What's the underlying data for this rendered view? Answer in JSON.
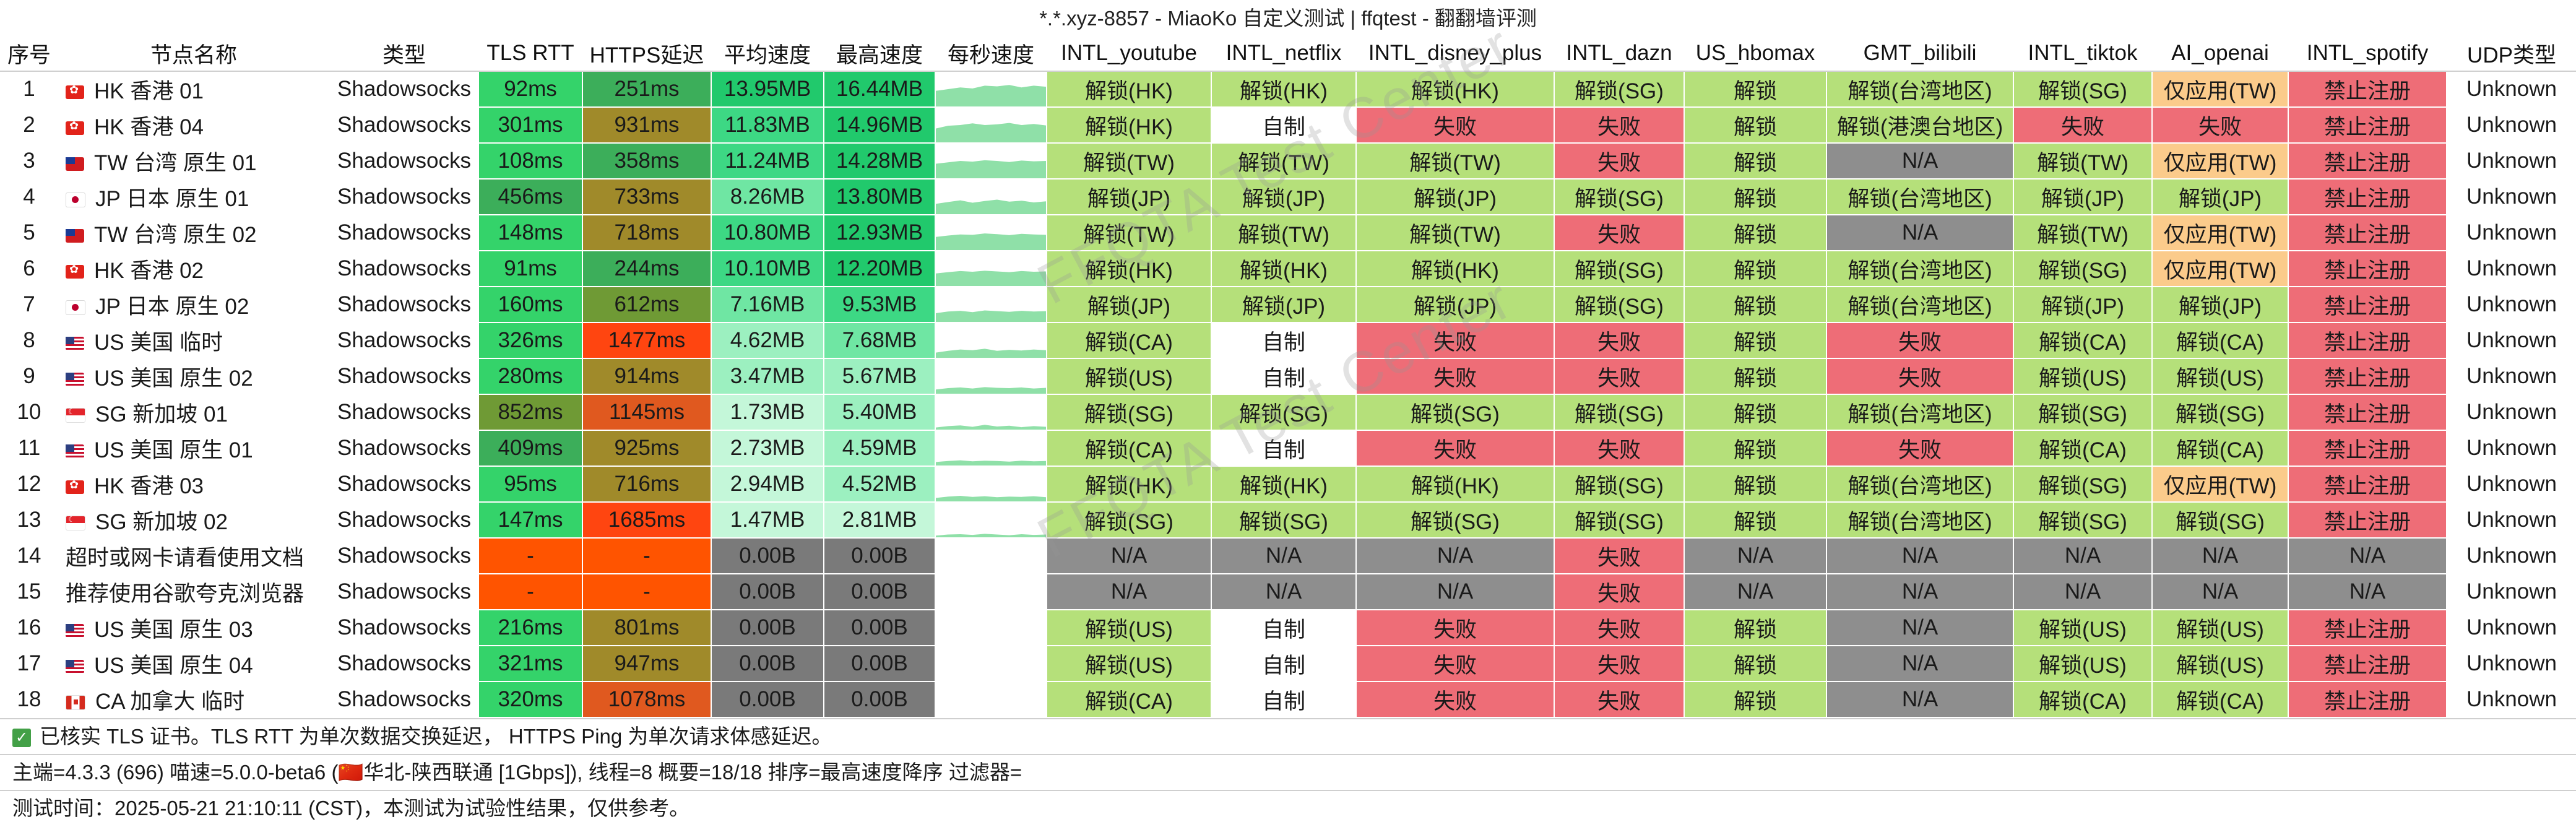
{
  "window": {
    "title": "*.*.xyz-8857 - MiaoKo 自定义测试 | ffqtest - 翻翻墙评测"
  },
  "columns": [
    "序号",
    "节点名称",
    "类型",
    "TLS RTT",
    "HTTPS延迟",
    "平均速度",
    "最高速度",
    "每秒速度",
    "INTL_youtube",
    "INTL_netflix",
    "INTL_disney_plus",
    "INTL_dazn",
    "US_hbomax",
    "GMT_bilibili",
    "INTL_tiktok",
    "AI_openai",
    "INTL_spotify",
    "UDP类型"
  ],
  "rows": [
    {
      "idx": "1",
      "flag": "HK",
      "name": "HK 香港 01",
      "type": "Shadowsocks",
      "tls": "92ms",
      "https": "251ms",
      "avg": "13.95MB",
      "max": "16.44MB",
      "spark": [
        0.45,
        0.5,
        0.55,
        0.52,
        0.6,
        0.58,
        0.62,
        0.55,
        0.6,
        0.57
      ],
      "tests": [
        "解锁(HK)",
        "解锁(HK)",
        "解锁(HK)",
        "解锁(SG)",
        "解锁",
        "解锁(台湾地区)",
        "解锁(SG)",
        "仅应用(TW)",
        "禁止注册"
      ],
      "udp": "Unknown"
    },
    {
      "idx": "2",
      "flag": "HK",
      "name": "HK 香港 04",
      "type": "Shadowsocks",
      "tls": "301ms",
      "https": "931ms",
      "avg": "11.83MB",
      "max": "14.96MB",
      "spark": [
        0.4,
        0.48,
        0.5,
        0.55,
        0.5,
        0.52,
        0.56,
        0.5,
        0.53,
        0.49
      ],
      "tests": [
        "解锁(HK)",
        "自制",
        "失败",
        "失败",
        "解锁",
        "解锁(港澳台地区)",
        "失败",
        "失败",
        "禁止注册"
      ],
      "udp": "Unknown"
    },
    {
      "idx": "3",
      "flag": "TW",
      "name": "TW 台湾 原生 01",
      "type": "Shadowsocks",
      "tls": "108ms",
      "https": "358ms",
      "avg": "11.24MB",
      "max": "14.28MB",
      "spark": [
        0.42,
        0.46,
        0.5,
        0.48,
        0.52,
        0.5,
        0.47,
        0.51,
        0.49,
        0.5
      ],
      "tests": [
        "解锁(TW)",
        "解锁(TW)",
        "解锁(TW)",
        "失败",
        "解锁",
        "N/A",
        "解锁(TW)",
        "仅应用(TW)",
        "禁止注册"
      ],
      "udp": "Unknown"
    },
    {
      "idx": "4",
      "flag": "JP",
      "name": "JP 日本 原生 01",
      "type": "Shadowsocks",
      "tls": "456ms",
      "https": "733ms",
      "avg": "8.26MB",
      "max": "13.80MB",
      "spark": [
        0.3,
        0.35,
        0.4,
        0.33,
        0.38,
        0.42,
        0.36,
        0.39,
        0.34,
        0.37
      ],
      "tests": [
        "解锁(JP)",
        "解锁(JP)",
        "解锁(JP)",
        "解锁(SG)",
        "解锁",
        "解锁(台湾地区)",
        "解锁(JP)",
        "解锁(JP)",
        "禁止注册"
      ],
      "udp": "Unknown"
    },
    {
      "idx": "5",
      "flag": "TW",
      "name": "TW 台湾 原生 02",
      "type": "Shadowsocks",
      "tls": "148ms",
      "https": "718ms",
      "avg": "10.80MB",
      "max": "12.93MB",
      "spark": [
        0.38,
        0.42,
        0.45,
        0.44,
        0.48,
        0.46,
        0.43,
        0.47,
        0.45,
        0.44
      ],
      "tests": [
        "解锁(TW)",
        "解锁(TW)",
        "解锁(TW)",
        "失败",
        "解锁",
        "N/A",
        "解锁(TW)",
        "仅应用(TW)",
        "禁止注册"
      ],
      "udp": "Unknown"
    },
    {
      "idx": "6",
      "flag": "HK",
      "name": "HK 香港 02",
      "type": "Shadowsocks",
      "tls": "91ms",
      "https": "244ms",
      "avg": "10.10MB",
      "max": "12.20MB",
      "spark": [
        0.36,
        0.4,
        0.43,
        0.41,
        0.44,
        0.42,
        0.4,
        0.43,
        0.41,
        0.42
      ],
      "tests": [
        "解锁(HK)",
        "解锁(HK)",
        "解锁(HK)",
        "解锁(SG)",
        "解锁",
        "解锁(台湾地区)",
        "解锁(SG)",
        "仅应用(TW)",
        "禁止注册"
      ],
      "udp": "Unknown"
    },
    {
      "idx": "7",
      "flag": "JP",
      "name": "JP 日本 原生 02",
      "type": "Shadowsocks",
      "tls": "160ms",
      "https": "612ms",
      "avg": "7.16MB",
      "max": "9.53MB",
      "spark": [
        0.25,
        0.3,
        0.32,
        0.28,
        0.33,
        0.31,
        0.29,
        0.32,
        0.3,
        0.31
      ],
      "tests": [
        "解锁(JP)",
        "解锁(JP)",
        "解锁(JP)",
        "解锁(SG)",
        "解锁",
        "解锁(台湾地区)",
        "解锁(JP)",
        "解锁(JP)",
        "禁止注册"
      ],
      "udp": "Unknown"
    },
    {
      "idx": "8",
      "flag": "US",
      "name": "US 美国 临时",
      "type": "Shadowsocks",
      "tls": "326ms",
      "https": "1477ms",
      "avg": "4.62MB",
      "max": "7.68MB",
      "spark": [
        0.15,
        0.2,
        0.24,
        0.22,
        0.26,
        0.2,
        0.23,
        0.21,
        0.24,
        0.22
      ],
      "tests": [
        "解锁(CA)",
        "自制",
        "失败",
        "失败",
        "解锁",
        "失败",
        "解锁(CA)",
        "解锁(CA)",
        "禁止注册"
      ],
      "udp": "Unknown"
    },
    {
      "idx": "9",
      "flag": "US",
      "name": "US 美国 原生 02",
      "type": "Shadowsocks",
      "tls": "280ms",
      "https": "914ms",
      "avg": "3.47MB",
      "max": "5.67MB",
      "spark": [
        0.12,
        0.16,
        0.18,
        0.15,
        0.19,
        0.17,
        0.16,
        0.18,
        0.15,
        0.17
      ],
      "tests": [
        "解锁(US)",
        "自制",
        "失败",
        "失败",
        "解锁",
        "失败",
        "解锁(US)",
        "解锁(US)",
        "禁止注册"
      ],
      "udp": "Unknown"
    },
    {
      "idx": "10",
      "flag": "SG",
      "name": "SG 新加坡 01",
      "type": "Shadowsocks",
      "tls": "852ms",
      "https": "1145ms",
      "avg": "1.73MB",
      "max": "5.40MB",
      "spark": [
        0.06,
        0.1,
        0.12,
        0.08,
        0.14,
        0.09,
        0.11,
        0.07,
        0.1,
        0.08
      ],
      "tests": [
        "解锁(SG)",
        "解锁(SG)",
        "解锁(SG)",
        "解锁(SG)",
        "解锁",
        "解锁(台湾地区)",
        "解锁(SG)",
        "解锁(SG)",
        "禁止注册"
      ],
      "udp": "Unknown"
    },
    {
      "idx": "11",
      "flag": "US",
      "name": "US 美国 原生 01",
      "type": "Shadowsocks",
      "tls": "409ms",
      "https": "925ms",
      "avg": "2.73MB",
      "max": "4.59MB",
      "spark": [
        0.1,
        0.13,
        0.15,
        0.12,
        0.14,
        0.13,
        0.11,
        0.14,
        0.12,
        0.13
      ],
      "tests": [
        "解锁(CA)",
        "自制",
        "失败",
        "失败",
        "解锁",
        "失败",
        "解锁(CA)",
        "解锁(CA)",
        "禁止注册"
      ],
      "udp": "Unknown"
    },
    {
      "idx": "12",
      "flag": "HK",
      "name": "HK 香港 03",
      "type": "Shadowsocks",
      "tls": "95ms",
      "https": "716ms",
      "avg": "2.94MB",
      "max": "4.52MB",
      "spark": [
        0.1,
        0.14,
        0.16,
        0.13,
        0.15,
        0.12,
        0.14,
        0.13,
        0.15,
        0.12
      ],
      "tests": [
        "解锁(HK)",
        "解锁(HK)",
        "解锁(HK)",
        "解锁(SG)",
        "解锁",
        "解锁(台湾地区)",
        "解锁(SG)",
        "仅应用(TW)",
        "禁止注册"
      ],
      "udp": "Unknown"
    },
    {
      "idx": "13",
      "flag": "SG",
      "name": "SG 新加坡 02",
      "type": "Shadowsocks",
      "tls": "147ms",
      "https": "1685ms",
      "avg": "1.47MB",
      "max": "2.81MB",
      "spark": [
        0.05,
        0.08,
        0.09,
        0.07,
        0.1,
        0.08,
        0.06,
        0.09,
        0.07,
        0.08
      ],
      "tests": [
        "解锁(SG)",
        "解锁(SG)",
        "解锁(SG)",
        "解锁(SG)",
        "解锁",
        "解锁(台湾地区)",
        "解锁(SG)",
        "解锁(SG)",
        "禁止注册"
      ],
      "udp": "Unknown"
    },
    {
      "idx": "14",
      "flag": "",
      "name": "超时或网卡请看使用文档",
      "type": "Shadowsocks",
      "tls": "-",
      "https": "-",
      "avg": "0.00B",
      "max": "0.00B",
      "spark": [],
      "tests": [
        "N/A",
        "N/A",
        "N/A",
        "失败",
        "N/A",
        "N/A",
        "N/A",
        "N/A",
        "N/A"
      ],
      "udp": "Unknown"
    },
    {
      "idx": "15",
      "flag": "",
      "name": "推荐使用谷歌夸克浏览器",
      "type": "Shadowsocks",
      "tls": "-",
      "https": "-",
      "avg": "0.00B",
      "max": "0.00B",
      "spark": [],
      "tests": [
        "N/A",
        "N/A",
        "N/A",
        "失败",
        "N/A",
        "N/A",
        "N/A",
        "N/A",
        "N/A"
      ],
      "udp": "Unknown"
    },
    {
      "idx": "16",
      "flag": "US",
      "name": "US 美国 原生 03",
      "type": "Shadowsocks",
      "tls": "216ms",
      "https": "801ms",
      "avg": "0.00B",
      "max": "0.00B",
      "spark": [],
      "tests": [
        "解锁(US)",
        "自制",
        "失败",
        "失败",
        "解锁",
        "N/A",
        "解锁(US)",
        "解锁(US)",
        "禁止注册"
      ],
      "udp": "Unknown"
    },
    {
      "idx": "17",
      "flag": "US",
      "name": "US 美国 原生 04",
      "type": "Shadowsocks",
      "tls": "321ms",
      "https": "947ms",
      "avg": "0.00B",
      "max": "0.00B",
      "spark": [],
      "tests": [
        "解锁(US)",
        "自制",
        "失败",
        "失败",
        "解锁",
        "N/A",
        "解锁(US)",
        "解锁(US)",
        "禁止注册"
      ],
      "udp": "Unknown"
    },
    {
      "idx": "18",
      "flag": "CA",
      "name": "CA 加拿大 临时",
      "type": "Shadowsocks",
      "tls": "320ms",
      "https": "1078ms",
      "avg": "0.00B",
      "max": "0.00B",
      "spark": [],
      "tests": [
        "解锁(CA)",
        "自制",
        "失败",
        "失败",
        "解锁",
        "N/A",
        "解锁(CA)",
        "解锁(CA)",
        "禁止注册"
      ],
      "udp": "Unknown"
    }
  ],
  "footer": {
    "note": "已核实 TLS 证书。TLS RTT 为单次数据交换延迟， HTTPS Ping 为单次请求体感延迟。",
    "info": "主端=4.3.3 (696) 喵速=5.0.0-beta6 (🇨🇳华北-陕西联通 [1Gbps]), 线程=8 概要=18/18 排序=最高速度降序 过滤器=",
    "time": "测试时间：2025-05-21 21:10:11 (CST)，本测试为试验性结果，仅供参考。"
  },
  "watermark": "FFQTA Test Center",
  "colors": {
    "unlock": "#b5e07a",
    "self": "#ffffff",
    "fail": "#ee6d77",
    "na": "#8e8e8e",
    "partial": "#fbcb8b",
    "forbid": "#ee6d77",
    "udp": "#ffffff",
    "sparkline": "#8fe0a8"
  }
}
